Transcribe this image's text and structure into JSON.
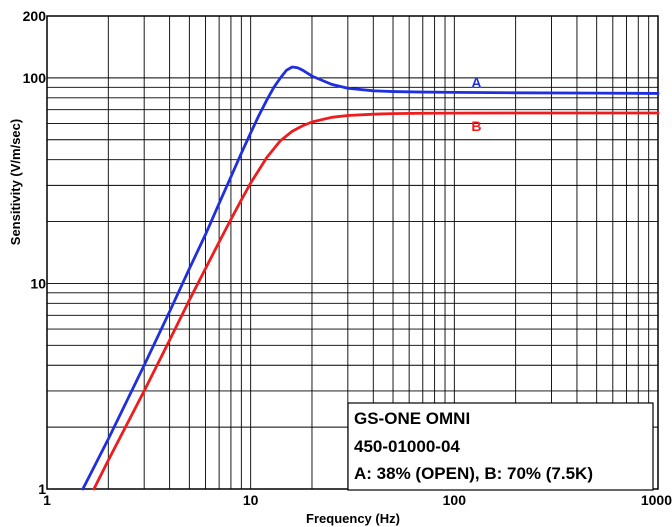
{
  "chart_data": {
    "type": "line",
    "xlabel": "Frequency (Hz)",
    "ylabel": "Sensitivity (V/m/sec)",
    "x_scale": "log",
    "y_scale": "log",
    "xlim": [
      1,
      1000
    ],
    "ylim": [
      1,
      200
    ],
    "grid": true,
    "x_ticks": [
      {
        "value": 1,
        "label": "1"
      },
      {
        "value": 10,
        "label": "10"
      },
      {
        "value": 100,
        "label": "100"
      },
      {
        "value": 1000,
        "label": "1000"
      }
    ],
    "y_ticks": [
      {
        "value": 1,
        "label": "1"
      },
      {
        "value": 10,
        "label": "10"
      },
      {
        "value": 100,
        "label": "100"
      },
      {
        "value": 200,
        "label": "200"
      }
    ],
    "series": [
      {
        "name": "A",
        "color": "#1f2fe0",
        "x": [
          1.5,
          2,
          3,
          4,
          5,
          6,
          7,
          8,
          9,
          10,
          11,
          12,
          13,
          14,
          15,
          16,
          17,
          18,
          20,
          25,
          30,
          40,
          50,
          70,
          100,
          200,
          500,
          1000
        ],
        "y": [
          1.0,
          1.75,
          4.0,
          7.3,
          11.8,
          17.3,
          24.5,
          33.0,
          43.0,
          54.0,
          66.0,
          78.0,
          90.0,
          100.0,
          109.0,
          113.0,
          112.0,
          109.0,
          102.0,
          93.0,
          89.0,
          86.5,
          85.8,
          85.3,
          85.0,
          84.6,
          84.3,
          84.0
        ]
      },
      {
        "name": "B",
        "color": "#ee1c1c",
        "x": [
          1.7,
          2,
          3,
          4,
          5,
          6,
          7,
          8,
          9,
          10,
          12,
          14,
          16,
          18,
          20,
          25,
          30,
          40,
          50,
          70,
          100,
          200,
          500,
          1000
        ],
        "y": [
          1.0,
          1.38,
          3.0,
          5.3,
          8.3,
          11.8,
          15.9,
          20.5,
          25.5,
          30.8,
          41.0,
          49.5,
          55.0,
          58.5,
          61.0,
          64.3,
          65.6,
          66.6,
          67.0,
          67.3,
          67.4,
          67.5,
          67.5,
          67.5
        ]
      }
    ],
    "annotations": [
      {
        "text": "A",
        "series": "A"
      },
      {
        "text": "B",
        "series": "B"
      }
    ],
    "legend_box": {
      "position": "bottom-right",
      "lines": [
        "GS-ONE OMNI",
        "450-01000-04",
        "A: 38% (OPEN),  B: 70% (7.5K)"
      ]
    }
  }
}
